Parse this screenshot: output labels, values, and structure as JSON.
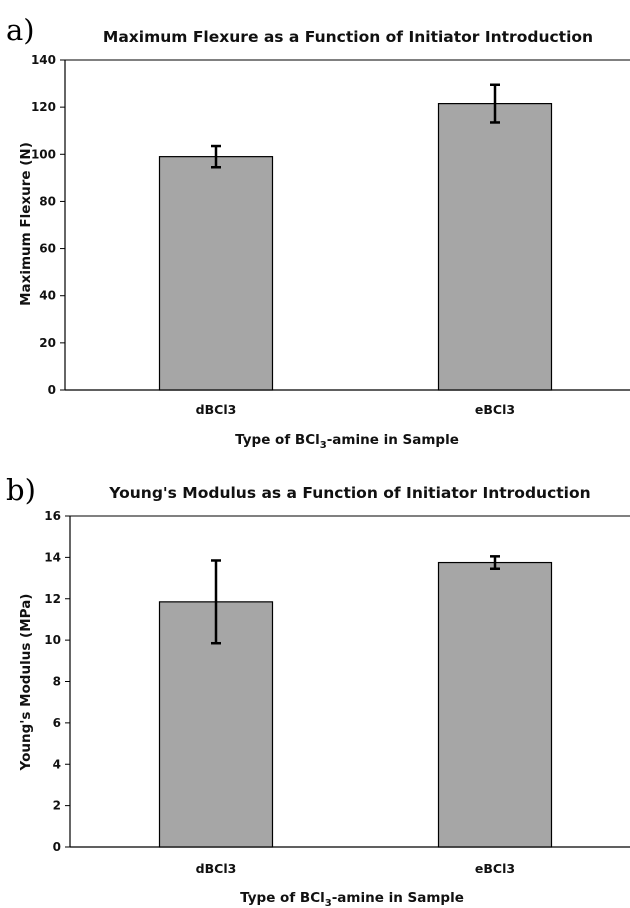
{
  "chart_data": [
    {
      "type": "bar",
      "panel_label": "a)",
      "title": "Maximum Flexure as a Function of Initiator Introduction",
      "xlabel": "Type of BCl",
      "xlabel_sub": "3",
      "xlabel_rest": "-amine in Sample",
      "ylabel": "Maximum Flexure (N)",
      "categories": [
        "dBCl3",
        "eBCl3"
      ],
      "values": [
        99,
        121.5
      ],
      "errors": [
        4.5,
        8
      ],
      "ylim": [
        0,
        140
      ],
      "yticks": [
        "0",
        "20",
        "40",
        "60",
        "80",
        "100",
        "120",
        "140"
      ],
      "grid": false,
      "bar_color": "#a6a6a6"
    },
    {
      "type": "bar",
      "panel_label": "b)",
      "title": "Young's Modulus as a Function of Initiator Introduction",
      "xlabel": "Type of BCl",
      "xlabel_sub": "3",
      "xlabel_rest": "-amine in Sample",
      "ylabel": "Young's Modulus (MPa)",
      "categories": [
        "dBCl3",
        "eBCl3"
      ],
      "values": [
        11.85,
        13.75
      ],
      "errors": [
        2,
        0.3
      ],
      "ylim": [
        0,
        16
      ],
      "yticks": [
        "0",
        "2",
        "4",
        "6",
        "8",
        "10",
        "12",
        "14",
        "16"
      ],
      "grid": false,
      "bar_color": "#a6a6a6"
    }
  ]
}
